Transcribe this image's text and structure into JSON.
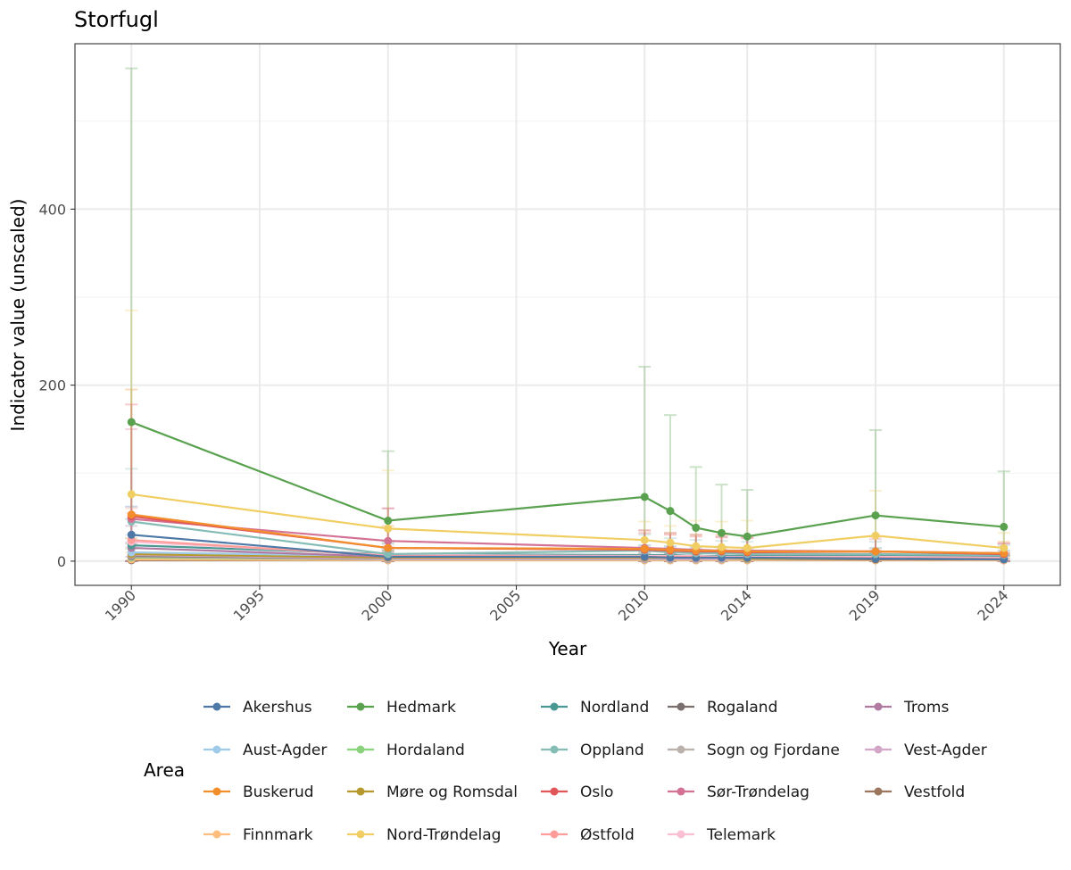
{
  "chart_data": {
    "type": "line",
    "title": "Storfugl",
    "xlabel": "Year",
    "ylabel": "Indicator value (unscaled)",
    "xlim": [
      1987.8,
      2026.2
    ],
    "ylim": [
      -27.5,
      588
    ],
    "x_ticks": [
      1990,
      1995,
      2000,
      2005,
      2010,
      2014,
      2019,
      2024
    ],
    "y_ticks": [
      0,
      200,
      400
    ],
    "legend_title": "Area",
    "legend_position": "bottom",
    "series": [
      {
        "name": "Akershus",
        "color": "#4e79a7",
        "x": [
          1990,
          2000,
          2010,
          2011,
          2012,
          2013,
          2014,
          2019,
          2024
        ],
        "values": [
          30,
          5,
          5,
          4,
          4,
          4,
          4,
          3,
          2
        ],
        "upper": [
          62,
          12,
          14,
          12,
          11,
          11,
          11,
          9,
          6
        ]
      },
      {
        "name": "Aust-Agder",
        "color": "#a0cbe8",
        "x": [
          1990,
          2000,
          2010,
          2011,
          2012,
          2013,
          2014,
          2019,
          2024
        ],
        "values": [
          10,
          6,
          6,
          6,
          5,
          5,
          5,
          5,
          4
        ],
        "upper": [
          30,
          15,
          16,
          15,
          14,
          13,
          13,
          12,
          10
        ]
      },
      {
        "name": "Buskerud",
        "color": "#f28e2b",
        "x": [
          1990,
          2000,
          2010,
          2011,
          2012,
          2013,
          2014,
          2019,
          2024
        ],
        "values": [
          53,
          15,
          14,
          13,
          12,
          12,
          11,
          11,
          9
        ],
        "upper": [
          195,
          40,
          35,
          32,
          30,
          30,
          28,
          28,
          22
        ]
      },
      {
        "name": "Finnmark",
        "color": "#ffbe7d",
        "x": [
          1990,
          2000,
          2010,
          2011,
          2012,
          2013,
          2014,
          2019,
          2024
        ],
        "values": [
          2,
          1,
          1,
          1,
          1,
          1,
          1,
          1,
          1
        ],
        "upper": [
          10,
          5,
          5,
          5,
          5,
          5,
          5,
          5,
          4
        ]
      },
      {
        "name": "Hedmark",
        "color": "#59a14f",
        "x": [
          1990,
          2000,
          2010,
          2011,
          2012,
          2013,
          2014,
          2019,
          2024
        ],
        "values": [
          158,
          46,
          73,
          57,
          38,
          32,
          28,
          52,
          39
        ],
        "upper": [
          560,
          125,
          221,
          166,
          107,
          87,
          81,
          149,
          102
        ]
      },
      {
        "name": "Hordaland",
        "color": "#8cd17d",
        "x": [
          1990,
          2000,
          2010,
          2011,
          2012,
          2013,
          2014,
          2019,
          2024
        ],
        "values": [
          4,
          2,
          2,
          2,
          2,
          2,
          2,
          2,
          2
        ],
        "upper": [
          14,
          8,
          8,
          8,
          8,
          8,
          7,
          7,
          6
        ]
      },
      {
        "name": "Møre og Romsdal",
        "color": "#b6992d",
        "x": [
          1990,
          2000,
          2010,
          2011,
          2012,
          2013,
          2014,
          2019,
          2024
        ],
        "values": [
          8,
          4,
          4,
          4,
          4,
          4,
          3,
          3,
          3
        ],
        "upper": [
          26,
          12,
          12,
          11,
          11,
          11,
          10,
          10,
          8
        ]
      },
      {
        "name": "Nord-Trøndelag",
        "color": "#f1ce63",
        "x": [
          1990,
          2000,
          2010,
          2011,
          2012,
          2013,
          2014,
          2019,
          2024
        ],
        "values": [
          76,
          37,
          24,
          21,
          17,
          16,
          15,
          29,
          15
        ],
        "upper": [
          285,
          103,
          45,
          40,
          46,
          45,
          46,
          80,
          32
        ]
      },
      {
        "name": "Nordland",
        "color": "#499894",
        "x": [
          1990,
          2000,
          2010,
          2011,
          2012,
          2013,
          2014,
          2019,
          2024
        ],
        "values": [
          18,
          8,
          7,
          7,
          6,
          6,
          6,
          6,
          5
        ],
        "upper": [
          48,
          20,
          18,
          17,
          16,
          16,
          15,
          15,
          12
        ]
      },
      {
        "name": "Oppland",
        "color": "#86bcb6",
        "x": [
          1990,
          2000,
          2010,
          2011,
          2012,
          2013,
          2014,
          2019,
          2024
        ],
        "values": [
          45,
          8,
          12,
          10,
          9,
          9,
          8,
          8,
          7
        ],
        "upper": [
          105,
          22,
          30,
          26,
          24,
          23,
          22,
          22,
          18
        ]
      },
      {
        "name": "Oslo",
        "color": "#e15759",
        "x": [
          1990,
          2000,
          2010,
          2011,
          2012,
          2013,
          2014,
          2019,
          2024
        ],
        "values": [
          51,
          15,
          13,
          12,
          11,
          11,
          10,
          11,
          8
        ],
        "upper": [
          178,
          60,
          32,
          30,
          28,
          27,
          26,
          28,
          20
        ]
      },
      {
        "name": "Østfold",
        "color": "#ff9d9a",
        "x": [
          1990,
          2000,
          2010,
          2011,
          2012,
          2013,
          2014,
          2019,
          2024
        ],
        "values": [
          24,
          6,
          5,
          5,
          5,
          4,
          4,
          4,
          3
        ],
        "upper": [
          60,
          16,
          14,
          13,
          12,
          12,
          12,
          11,
          9
        ]
      },
      {
        "name": "Rogaland",
        "color": "#79706e",
        "x": [
          1990,
          2000,
          2010,
          2011,
          2012,
          2013,
          2014,
          2019,
          2024
        ],
        "values": [
          6,
          3,
          3,
          3,
          3,
          3,
          3,
          2,
          2
        ],
        "upper": [
          20,
          10,
          10,
          9,
          9,
          9,
          9,
          8,
          7
        ]
      },
      {
        "name": "Sogn og Fjordane",
        "color": "#bab0ac",
        "x": [
          1990,
          2000,
          2010,
          2011,
          2012,
          2013,
          2014,
          2019,
          2024
        ],
        "values": [
          5,
          2,
          2,
          2,
          2,
          2,
          2,
          2,
          2
        ],
        "upper": [
          16,
          8,
          8,
          8,
          7,
          7,
          7,
          7,
          6
        ]
      },
      {
        "name": "Sør-Trøndelag",
        "color": "#d37295",
        "x": [
          1990,
          2000,
          2010,
          2011,
          2012,
          2013,
          2014,
          2019,
          2024
        ],
        "values": [
          48,
          23,
          15,
          14,
          13,
          12,
          12,
          11,
          9
        ],
        "upper": [
          150,
          60,
          35,
          32,
          30,
          28,
          27,
          25,
          20
        ]
      },
      {
        "name": "Telemark",
        "color": "#fabfd2",
        "x": [
          1990,
          2000,
          2010,
          2011,
          2012,
          2013,
          2014,
          2019,
          2024
        ],
        "values": [
          22,
          7,
          6,
          6,
          6,
          5,
          5,
          5,
          4
        ],
        "upper": [
          55,
          18,
          16,
          15,
          14,
          14,
          13,
          13,
          11
        ]
      },
      {
        "name": "Troms",
        "color": "#b07aa1",
        "x": [
          1990,
          2000,
          2010,
          2011,
          2012,
          2013,
          2014,
          2019,
          2024
        ],
        "values": [
          15,
          5,
          5,
          5,
          4,
          4,
          4,
          4,
          3
        ],
        "upper": [
          40,
          14,
          14,
          13,
          12,
          12,
          11,
          11,
          9
        ]
      },
      {
        "name": "Vest-Agder",
        "color": "#d4a6c8",
        "x": [
          1990,
          2000,
          2010,
          2011,
          2012,
          2013,
          2014,
          2019,
          2024
        ],
        "values": [
          7,
          3,
          3,
          3,
          3,
          3,
          3,
          3,
          2
        ],
        "upper": [
          22,
          10,
          10,
          9,
          9,
          9,
          9,
          8,
          7
        ]
      },
      {
        "name": "Vestfold",
        "color": "#9d7660",
        "x": [
          1990,
          2000,
          2010,
          2011,
          2012,
          2013,
          2014,
          2019,
          2024
        ],
        "values": [
          1,
          1,
          1,
          1,
          1,
          1,
          1,
          1,
          1
        ],
        "upper": [
          5,
          4,
          4,
          4,
          4,
          4,
          4,
          4,
          3
        ]
      }
    ]
  }
}
